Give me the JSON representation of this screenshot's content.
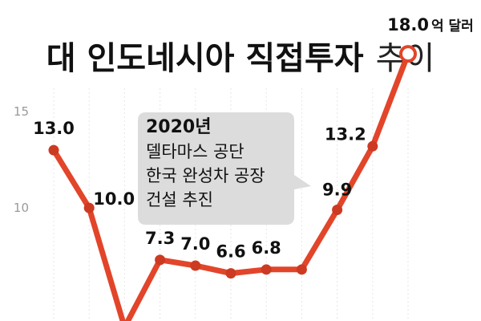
{
  "chart_data": {
    "type": "line",
    "title": "대 인도네시아 직접투자",
    "subtitle": "추이",
    "unit": "억 달러",
    "yticks": [
      "10",
      "15"
    ],
    "ylim": [
      3.5,
      20.8
    ],
    "color": "#e2452a",
    "annotation": {
      "year": "2020년",
      "lines": [
        "델타마스 공단",
        "한국 완성차 공장",
        "건설 추진"
      ]
    },
    "points": [
      {
        "y": 13.0,
        "label": "13.0"
      },
      {
        "y": 10.0,
        "label": "10.0"
      },
      {
        "y": 3.8,
        "label": ""
      },
      {
        "y": 7.3,
        "label": "7.3"
      },
      {
        "y": 7.0,
        "label": "7.0"
      },
      {
        "y": 6.6,
        "label": "6.6"
      },
      {
        "y": 6.8,
        "label": "6.8"
      },
      {
        "y": 6.8,
        "label": ""
      },
      {
        "y": 9.9,
        "label": "9.9"
      },
      {
        "y": 13.2,
        "label": "13.2"
      },
      {
        "y": 18.0,
        "label": "18.0"
      }
    ]
  }
}
